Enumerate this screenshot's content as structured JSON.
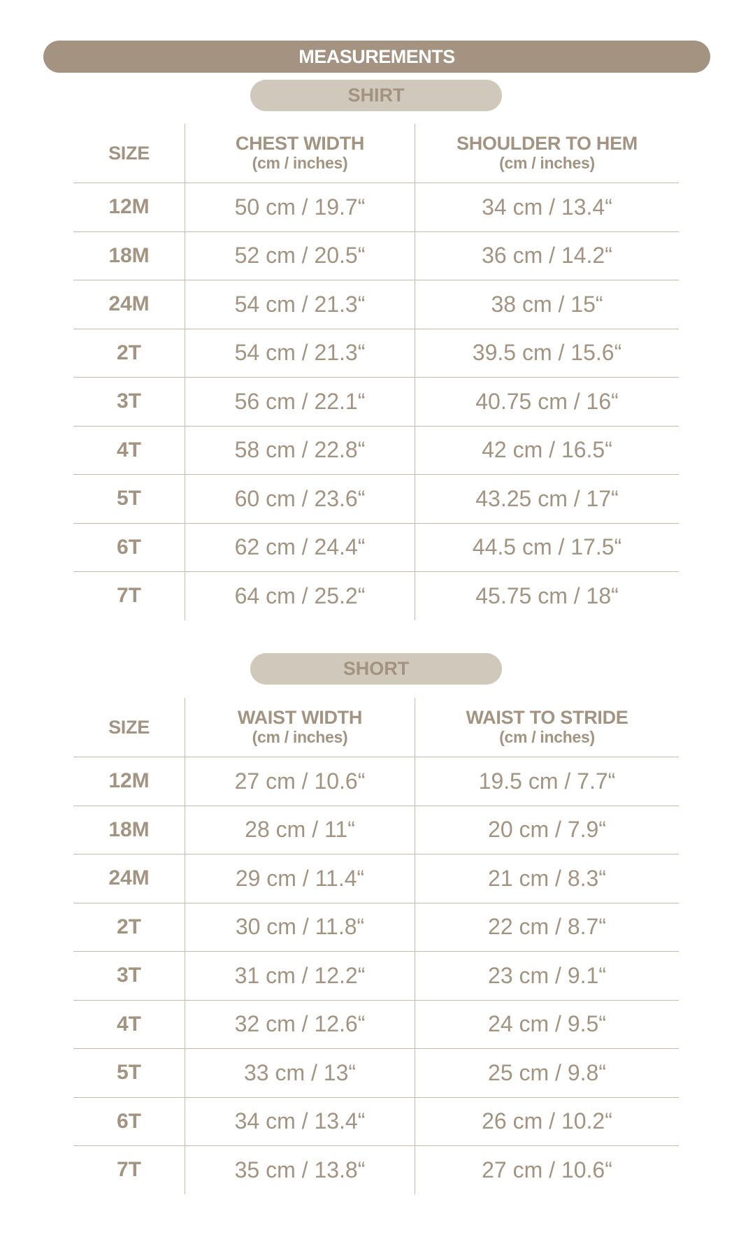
{
  "title": "MEASUREMENTS",
  "colors": {
    "bar": "#a39380",
    "pill": "#cfc8bb",
    "text": "#a39381",
    "rule": "#c9b9ad"
  },
  "sections": [
    {
      "label": "SHIRT",
      "headers": [
        {
          "title": "SIZE",
          "sub": ""
        },
        {
          "title": "CHEST WIDTH",
          "sub": "(cm / inches)"
        },
        {
          "title": "SHOULDER TO HEM",
          "sub": "(cm / inches)"
        }
      ],
      "rows": [
        [
          "12M",
          "50 cm / 19.7“",
          "34 cm / 13.4“"
        ],
        [
          "18M",
          "52 cm / 20.5“",
          "36 cm / 14.2“"
        ],
        [
          "24M",
          "54 cm / 21.3“",
          "38 cm / 15“"
        ],
        [
          "2T",
          "54 cm / 21.3“",
          "39.5 cm / 15.6“"
        ],
        [
          "3T",
          "56 cm / 22.1“",
          "40.75 cm / 16“"
        ],
        [
          "4T",
          "58 cm / 22.8“",
          "42 cm / 16.5“"
        ],
        [
          "5T",
          "60 cm / 23.6“",
          "43.25 cm / 17“"
        ],
        [
          "6T",
          "62 cm / 24.4“",
          "44.5 cm / 17.5“"
        ],
        [
          "7T",
          "64 cm / 25.2“",
          "45.75 cm / 18“"
        ]
      ]
    },
    {
      "label": "SHORT",
      "headers": [
        {
          "title": "SIZE",
          "sub": ""
        },
        {
          "title": "WAIST WIDTH",
          "sub": "(cm / inches)"
        },
        {
          "title": "WAIST TO STRIDE",
          "sub": "(cm / inches)"
        }
      ],
      "rows": [
        [
          "12M",
          "27 cm / 10.6“",
          "19.5 cm / 7.7“"
        ],
        [
          "18M",
          "28 cm / 11“",
          "20 cm / 7.9“"
        ],
        [
          "24M",
          "29 cm / 11.4“",
          "21 cm / 8.3“"
        ],
        [
          "2T",
          "30 cm / 11.8“",
          "22 cm / 8.7“"
        ],
        [
          "3T",
          "31 cm / 12.2“",
          "23 cm / 9.1“"
        ],
        [
          "4T",
          "32 cm / 12.6“",
          "24 cm / 9.5“"
        ],
        [
          "5T",
          "33 cm / 13“",
          "25 cm / 9.8“"
        ],
        [
          "6T",
          "34 cm / 13.4“",
          "26 cm / 10.2“"
        ],
        [
          "7T",
          "35 cm / 13.8“",
          "27 cm / 10.6“"
        ]
      ]
    }
  ]
}
